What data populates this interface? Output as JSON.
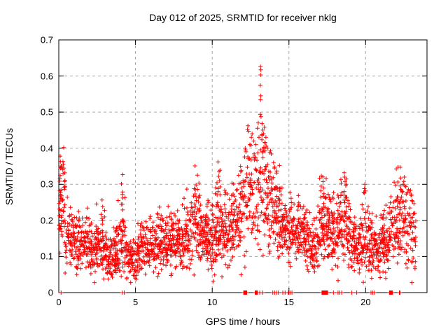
{
  "page": {
    "background": "#ffffff",
    "border_color": "#000000",
    "text_color": "#000000"
  },
  "chart_data": {
    "type": "scatter",
    "title": "Day 012 of 2025, SRMTID for receiver nklg",
    "xlabel": "GPS time / hours",
    "ylabel": "SRMTID / TECUs",
    "xlim": [
      0,
      24
    ],
    "ylim": [
      0,
      0.7
    ],
    "xtick_values": [
      0,
      5,
      10,
      15,
      20
    ],
    "xtick_labels": [
      "0",
      "5",
      "10",
      "15",
      "20"
    ],
    "ytick_values": [
      0,
      0.1,
      0.2,
      0.3,
      0.4,
      0.5,
      0.6,
      0.7
    ],
    "ytick_labels": [
      "0",
      "0.1",
      "0.2",
      "0.3",
      "0.4",
      "0.5",
      "0.6",
      "0.7"
    ],
    "grid": {
      "show": true,
      "color": "#a8a8a8",
      "dash": "4 4"
    },
    "marker": {
      "shape": "plus",
      "color": "#ff0000",
      "size": 7
    },
    "legend": null,
    "band_envelope_note": "dense noisy scatter band; control points are [hour, mean TECUs, half-spread TECUs]",
    "band_envelope": [
      [
        0.05,
        0.22,
        0.08
      ],
      [
        0.3,
        0.22,
        0.13
      ],
      [
        0.6,
        0.16,
        0.07
      ],
      [
        1.0,
        0.13,
        0.06
      ],
      [
        1.5,
        0.13,
        0.05
      ],
      [
        1.8,
        0.15,
        0.07
      ],
      [
        2.2,
        0.11,
        0.05
      ],
      [
        2.7,
        0.14,
        0.07
      ],
      [
        3.2,
        0.1,
        0.05
      ],
      [
        3.7,
        0.095,
        0.05
      ],
      [
        4.15,
        0.17,
        0.09
      ],
      [
        4.6,
        0.085,
        0.05
      ],
      [
        5.2,
        0.11,
        0.05
      ],
      [
        5.8,
        0.13,
        0.05
      ],
      [
        6.4,
        0.14,
        0.06
      ],
      [
        6.9,
        0.13,
        0.05
      ],
      [
        7.4,
        0.15,
        0.06
      ],
      [
        7.9,
        0.14,
        0.05
      ],
      [
        8.4,
        0.16,
        0.07
      ],
      [
        8.9,
        0.19,
        0.08
      ],
      [
        9.4,
        0.15,
        0.06
      ],
      [
        9.9,
        0.14,
        0.06
      ],
      [
        10.4,
        0.19,
        0.1
      ],
      [
        10.9,
        0.16,
        0.07
      ],
      [
        11.4,
        0.19,
        0.08
      ],
      [
        11.9,
        0.22,
        0.09
      ],
      [
        12.4,
        0.28,
        0.11
      ],
      [
        12.9,
        0.3,
        0.11
      ],
      [
        13.2,
        0.3,
        0.13
      ],
      [
        13.6,
        0.26,
        0.1
      ],
      [
        14.1,
        0.22,
        0.09
      ],
      [
        14.6,
        0.18,
        0.07
      ],
      [
        15.1,
        0.17,
        0.06
      ],
      [
        15.7,
        0.17,
        0.06
      ],
      [
        16.2,
        0.14,
        0.05
      ],
      [
        16.6,
        0.12,
        0.05
      ],
      [
        17.1,
        0.19,
        0.08
      ],
      [
        17.6,
        0.17,
        0.08
      ],
      [
        18.0,
        0.14,
        0.06
      ],
      [
        18.6,
        0.21,
        0.09
      ],
      [
        19.0,
        0.16,
        0.07
      ],
      [
        19.5,
        0.11,
        0.04
      ],
      [
        19.9,
        0.17,
        0.08
      ],
      [
        20.4,
        0.13,
        0.05
      ],
      [
        20.9,
        0.12,
        0.05
      ],
      [
        21.4,
        0.15,
        0.06
      ],
      [
        21.9,
        0.19,
        0.07
      ],
      [
        22.4,
        0.23,
        0.08
      ],
      [
        22.8,
        0.18,
        0.09
      ],
      [
        23.1,
        0.14,
        0.09
      ]
    ],
    "x_range_of_data": [
      0.02,
      23.28
    ],
    "feature_points": [
      [
        0.3,
        0.355
      ],
      [
        0.33,
        0.345
      ],
      [
        0.28,
        0.33
      ],
      [
        4.15,
        0.272
      ],
      [
        4.17,
        0.262
      ],
      [
        8.95,
        0.298
      ],
      [
        8.9,
        0.285
      ],
      [
        10.45,
        0.335
      ],
      [
        10.42,
        0.322
      ],
      [
        10.48,
        0.31
      ],
      [
        11.85,
        0.35
      ],
      [
        11.9,
        0.338
      ],
      [
        12.15,
        0.4
      ],
      [
        12.2,
        0.39
      ],
      [
        12.33,
        0.462
      ],
      [
        12.3,
        0.452
      ],
      [
        12.37,
        0.447
      ],
      [
        12.45,
        0.41
      ],
      [
        12.55,
        0.43
      ],
      [
        12.6,
        0.44
      ],
      [
        12.7,
        0.42
      ],
      [
        12.85,
        0.41
      ],
      [
        12.95,
        0.455
      ],
      [
        13.0,
        0.47
      ],
      [
        13.05,
        0.43
      ],
      [
        13.15,
        0.626
      ],
      [
        13.17,
        0.617
      ],
      [
        13.15,
        0.603
      ],
      [
        13.13,
        0.574
      ],
      [
        13.17,
        0.545
      ],
      [
        13.15,
        0.534
      ],
      [
        13.13,
        0.494
      ],
      [
        13.18,
        0.487
      ],
      [
        13.25,
        0.468
      ],
      [
        13.3,
        0.45
      ],
      [
        13.35,
        0.44
      ],
      [
        13.4,
        0.458
      ],
      [
        13.45,
        0.415
      ],
      [
        13.5,
        0.43
      ],
      [
        13.6,
        0.4
      ],
      [
        13.75,
        0.388
      ],
      [
        14.0,
        0.36
      ],
      [
        14.05,
        0.345
      ],
      [
        17.1,
        0.295
      ],
      [
        17.08,
        0.282
      ],
      [
        18.6,
        0.332
      ],
      [
        18.63,
        0.32
      ],
      [
        18.66,
        0.308
      ],
      [
        19.95,
        0.3
      ],
      [
        19.92,
        0.288
      ],
      [
        22.52,
        0.32
      ],
      [
        22.49,
        0.308
      ],
      [
        22.55,
        0.296
      ],
      [
        23.0,
        0.27
      ],
      [
        23.02,
        0.255
      ]
    ],
    "zero_value_markers_note": "red marks sitting on the x-axis (value 0); x in hours, w = block width in hours",
    "zero_value_markers": [
      {
        "x": 0.15,
        "w": 0
      },
      {
        "x": 4.15,
        "w": 0
      },
      {
        "x": 4.27,
        "w": 0
      },
      {
        "x": 12.05,
        "w": 0.22
      },
      {
        "x": 12.8,
        "w": 0.15
      },
      {
        "x": 13.1,
        "w": 0
      },
      {
        "x": 13.3,
        "w": 0
      },
      {
        "x": 13.95,
        "w": 0
      },
      {
        "x": 14.07,
        "w": 0
      },
      {
        "x": 14.18,
        "w": 0
      },
      {
        "x": 14.3,
        "w": 0
      },
      {
        "x": 14.6,
        "w": 0
      },
      {
        "x": 14.75,
        "w": 0
      },
      {
        "x": 14.95,
        "w": 0.05
      },
      {
        "x": 15.1,
        "w": 0
      },
      {
        "x": 15.2,
        "w": 0
      },
      {
        "x": 17.15,
        "w": 0.38
      },
      {
        "x": 17.9,
        "w": 0
      },
      {
        "x": 18.2,
        "w": 0
      },
      {
        "x": 18.32,
        "w": 0
      },
      {
        "x": 18.44,
        "w": 0
      },
      {
        "x": 19.1,
        "w": 0
      },
      {
        "x": 19.42,
        "w": 0
      },
      {
        "x": 20.35,
        "w": 0
      },
      {
        "x": 20.47,
        "w": 0
      },
      {
        "x": 20.57,
        "w": 0
      },
      {
        "x": 21.55,
        "w": 0.22
      },
      {
        "x": 22.2,
        "w": 0.05
      }
    ]
  }
}
